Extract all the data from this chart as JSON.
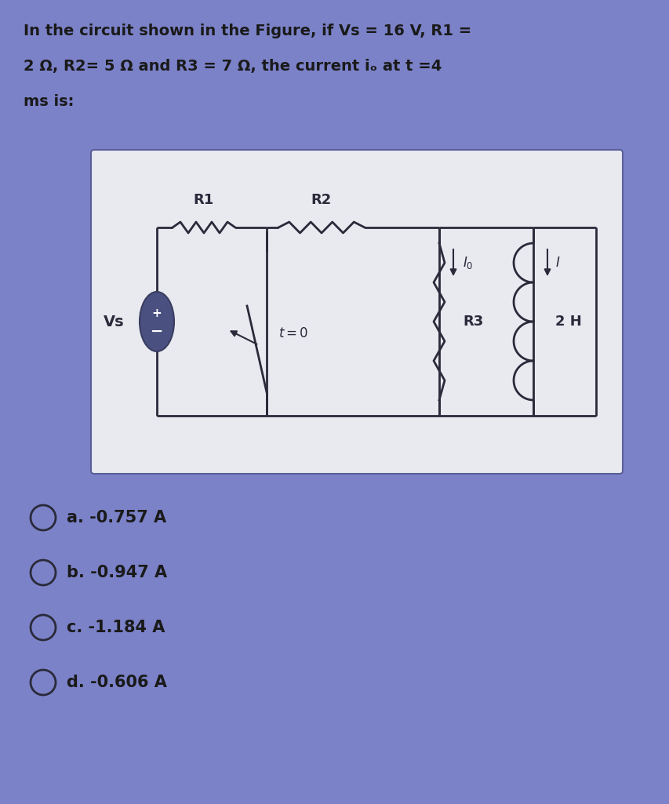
{
  "bg_color": "#7b82c8",
  "box_bg": "#e8eaf0",
  "box_border": "#5a5f9a",
  "circuit_color": "#2a2a3a",
  "vs_fill": "#4a5080",
  "text_color": "#1a1a1a",
  "question_line1": "In the circuit shown in the Figure, if Vs = 16 V, R1 =",
  "question_line2": "2 Ω, R2= 5 Ω and R3 = 7 Ω, the current iₒ at t =4",
  "question_line3": "ms is:",
  "options": [
    "a. -0.757 A",
    "b. -0.947 A",
    "c. -1.184 A",
    "d. -0.606 A"
  ],
  "font_size_q": 14,
  "font_size_opt": 14,
  "font_size_circ": 12
}
